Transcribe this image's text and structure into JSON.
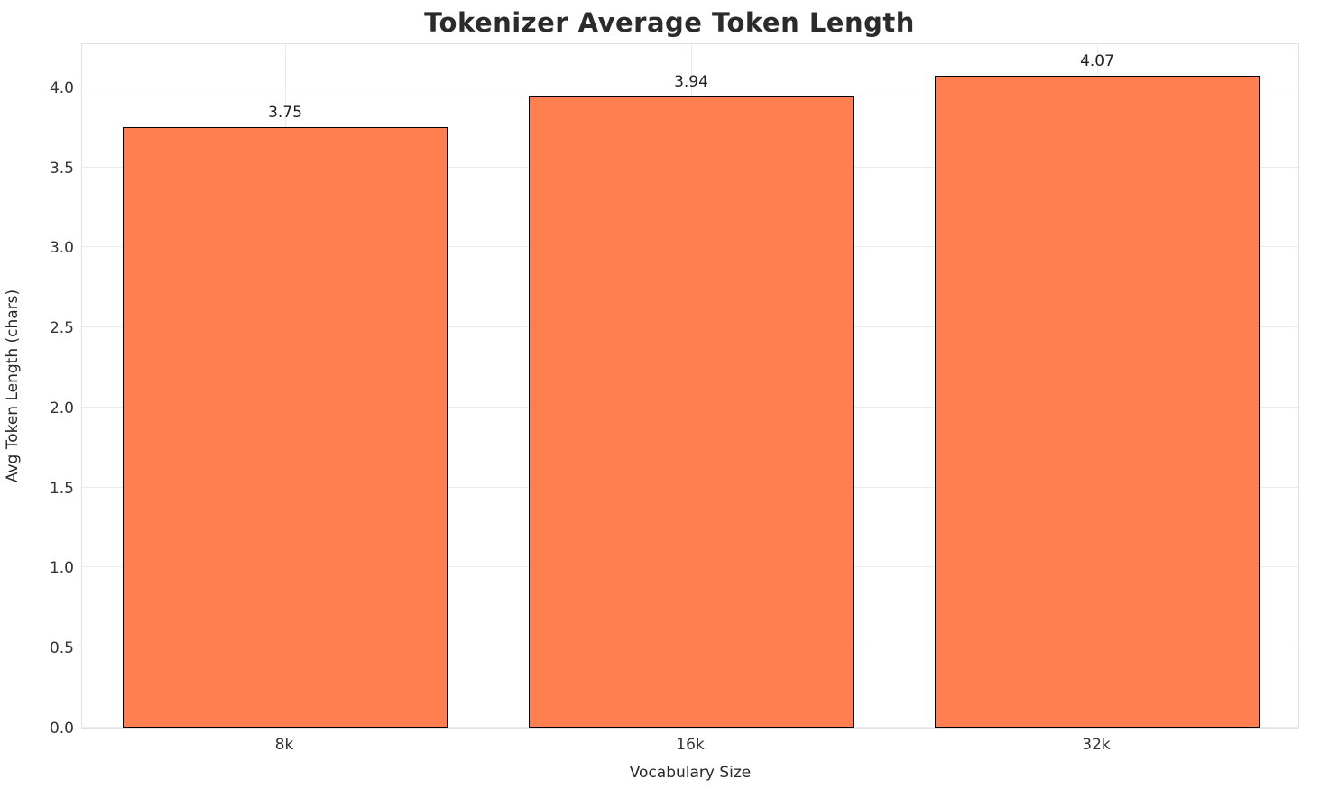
{
  "chart_data": {
    "type": "bar",
    "title": "Tokenizer Average Token Length",
    "xlabel": "Vocabulary Size",
    "ylabel": "Avg Token Length (chars)",
    "categories": [
      "8k",
      "16k",
      "32k"
    ],
    "values": [
      3.75,
      3.94,
      4.07
    ],
    "value_labels": [
      "3.75",
      "3.94",
      "4.07"
    ],
    "ytick_labels": [
      "0.0",
      "0.5",
      "1.0",
      "1.5",
      "2.0",
      "2.5",
      "3.0",
      "3.5",
      "4.0"
    ],
    "yticks": [
      0.0,
      0.5,
      1.0,
      1.5,
      2.0,
      2.5,
      3.0,
      3.5,
      4.0
    ],
    "ylim": [
      0,
      4.28
    ],
    "bar_width_fraction": 0.8,
    "bar_color": "#FF7F50",
    "bar_edge_color": "#000000",
    "grid": true,
    "legend": null
  }
}
